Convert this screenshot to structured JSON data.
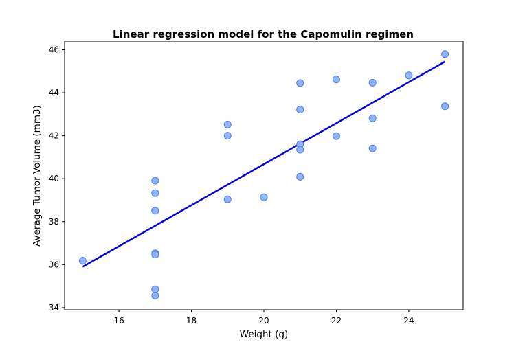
{
  "chart_data": {
    "type": "scatter",
    "title": "Linear regression model for the Capomulin regimen",
    "xlabel": "Weight (g)",
    "ylabel": "Average Tumor Volume (mm3)",
    "xlim": [
      14.5,
      25.5
    ],
    "ylim": [
      33.9,
      46.4
    ],
    "xticks": [
      16,
      18,
      20,
      22,
      24
    ],
    "yticks": [
      34,
      36,
      38,
      40,
      42,
      44,
      46
    ],
    "grid": false,
    "point_color": "#8fb5ff",
    "line_color": "#0000e0",
    "points": [
      {
        "x": 15,
        "y": 36.18
      },
      {
        "x": 17,
        "y": 39.91
      },
      {
        "x": 17,
        "y": 39.33
      },
      {
        "x": 17,
        "y": 38.51
      },
      {
        "x": 17,
        "y": 36.53
      },
      {
        "x": 17,
        "y": 36.47
      },
      {
        "x": 17,
        "y": 34.85
      },
      {
        "x": 17,
        "y": 34.56
      },
      {
        "x": 19,
        "y": 42.52
      },
      {
        "x": 19,
        "y": 42.0
      },
      {
        "x": 19,
        "y": 39.04
      },
      {
        "x": 20,
        "y": 39.14
      },
      {
        "x": 21,
        "y": 44.45
      },
      {
        "x": 21,
        "y": 43.22
      },
      {
        "x": 21,
        "y": 41.6
      },
      {
        "x": 21,
        "y": 41.35
      },
      {
        "x": 21,
        "y": 40.09
      },
      {
        "x": 22,
        "y": 44.62
      },
      {
        "x": 22,
        "y": 41.98
      },
      {
        "x": 23,
        "y": 44.47
      },
      {
        "x": 23,
        "y": 42.81
      },
      {
        "x": 23,
        "y": 41.41
      },
      {
        "x": 24,
        "y": 44.81
      },
      {
        "x": 25,
        "y": 45.8
      },
      {
        "x": 25,
        "y": 43.37
      }
    ],
    "regression_line": {
      "x": [
        15,
        25
      ],
      "y": [
        35.9,
        45.45
      ]
    }
  }
}
